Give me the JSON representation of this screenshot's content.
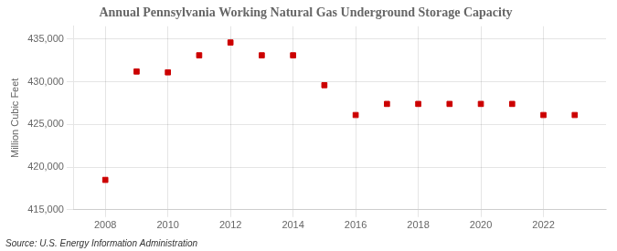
{
  "chart_data": {
    "type": "scatter",
    "title": "Annual Pennsylvania Working Natural Gas Underground Storage Capacity",
    "ylabel": "Million Cubic Feet",
    "source": "Source: U.S. Energy Information Administration",
    "x": [
      2008,
      2009,
      2010,
      2011,
      2012,
      2013,
      2014,
      2015,
      2016,
      2017,
      2018,
      2019,
      2020,
      2021,
      2022,
      2023
    ],
    "values": [
      418500,
      431200,
      431100,
      433100,
      434600,
      433100,
      433100,
      429600,
      426100,
      427400,
      427400,
      427400,
      427400,
      427400,
      426100,
      426100
    ],
    "color": "#cc0000",
    "marker": "square",
    "xlim": [
      2007,
      2024
    ],
    "xticks": [
      2008,
      2010,
      2012,
      2014,
      2016,
      2018,
      2020,
      2022
    ],
    "ylim": [
      415000,
      436500
    ],
    "yticks": [
      {
        "value": 415000,
        "label": "415,000"
      },
      {
        "value": 420000,
        "label": "420,000"
      },
      {
        "value": 425000,
        "label": "425,000"
      },
      {
        "value": 430000,
        "label": "430,000"
      },
      {
        "value": 435000,
        "label": "435,000"
      }
    ],
    "grid": true
  }
}
